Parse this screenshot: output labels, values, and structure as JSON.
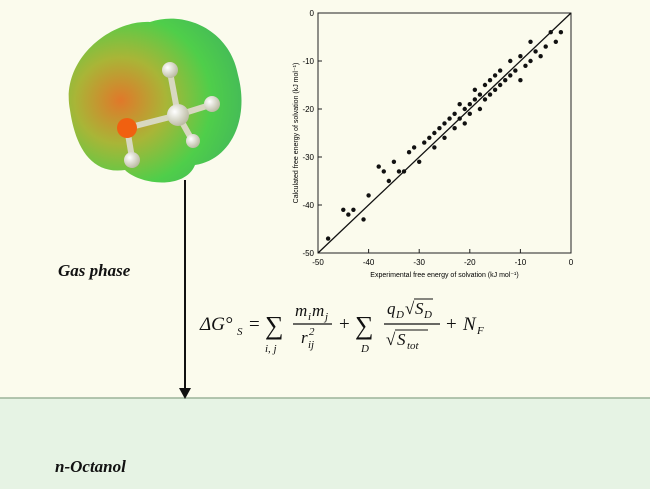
{
  "chart_data": {
    "type": "scatter",
    "xlabel": "Experimental free energy of solvation (kJ mol⁻¹)",
    "ylabel": "Calculated free energy of solvation (kJ mol⁻¹)",
    "xlim": [
      -50,
      0
    ],
    "ylim": [
      -50,
      0
    ],
    "xticks": [
      -50,
      -40,
      -30,
      -20,
      -10,
      0
    ],
    "yticks": [
      -50,
      -40,
      -30,
      -20,
      -10,
      0
    ],
    "color": "#111111",
    "x": [
      -48,
      -45,
      -44,
      -43,
      -41,
      -40,
      -38,
      -37,
      -36,
      -35,
      -34,
      -33,
      -32,
      -31,
      -30,
      -29,
      -28,
      -27,
      -27,
      -26,
      -25,
      -25,
      -24,
      -23,
      -23,
      -22,
      -22,
      -21,
      -21,
      -20,
      -20,
      -19,
      -19,
      -18,
      -18,
      -17,
      -17,
      -16,
      -16,
      -15,
      -15,
      -14,
      -14,
      -13,
      -12,
      -12,
      -11,
      -10,
      -10,
      -9,
      -8,
      -8,
      -7,
      -6,
      -5,
      -4,
      -3,
      -2
    ],
    "y": [
      -47,
      -41,
      -42,
      -41,
      -43,
      -38,
      -32,
      -33,
      -35,
      -31,
      -33,
      -33,
      -29,
      -28,
      -31,
      -27,
      -26,
      -28,
      -25,
      -24,
      -26,
      -23,
      -22,
      -24,
      -21,
      -22,
      -19,
      -20,
      -23,
      -19,
      -21,
      -18,
      -16,
      -20,
      -17,
      -15,
      -18,
      -17,
      -14,
      -16,
      -13,
      -15,
      -12,
      -14,
      -10,
      -13,
      -12,
      -9,
      -14,
      -11,
      -10,
      -6,
      -8,
      -9,
      -7,
      -4,
      -6,
      -4
    ],
    "fit_line": {
      "x": [
        -50,
        0
      ],
      "y": [
        -50,
        0
      ]
    }
  },
  "labels": {
    "gas": "Gas phase",
    "liquid": "n-Octanol"
  },
  "equation": [
    "ΔG°",
    "S",
    "=",
    "∑",
    "i, j",
    "m",
    "i",
    "m",
    "j",
    "r",
    "ij",
    "2",
    "+",
    "∑",
    "D",
    "q",
    "D",
    "√",
    "S",
    "D",
    "√",
    "S",
    "tot",
    "+",
    "N",
    "F"
  ]
}
